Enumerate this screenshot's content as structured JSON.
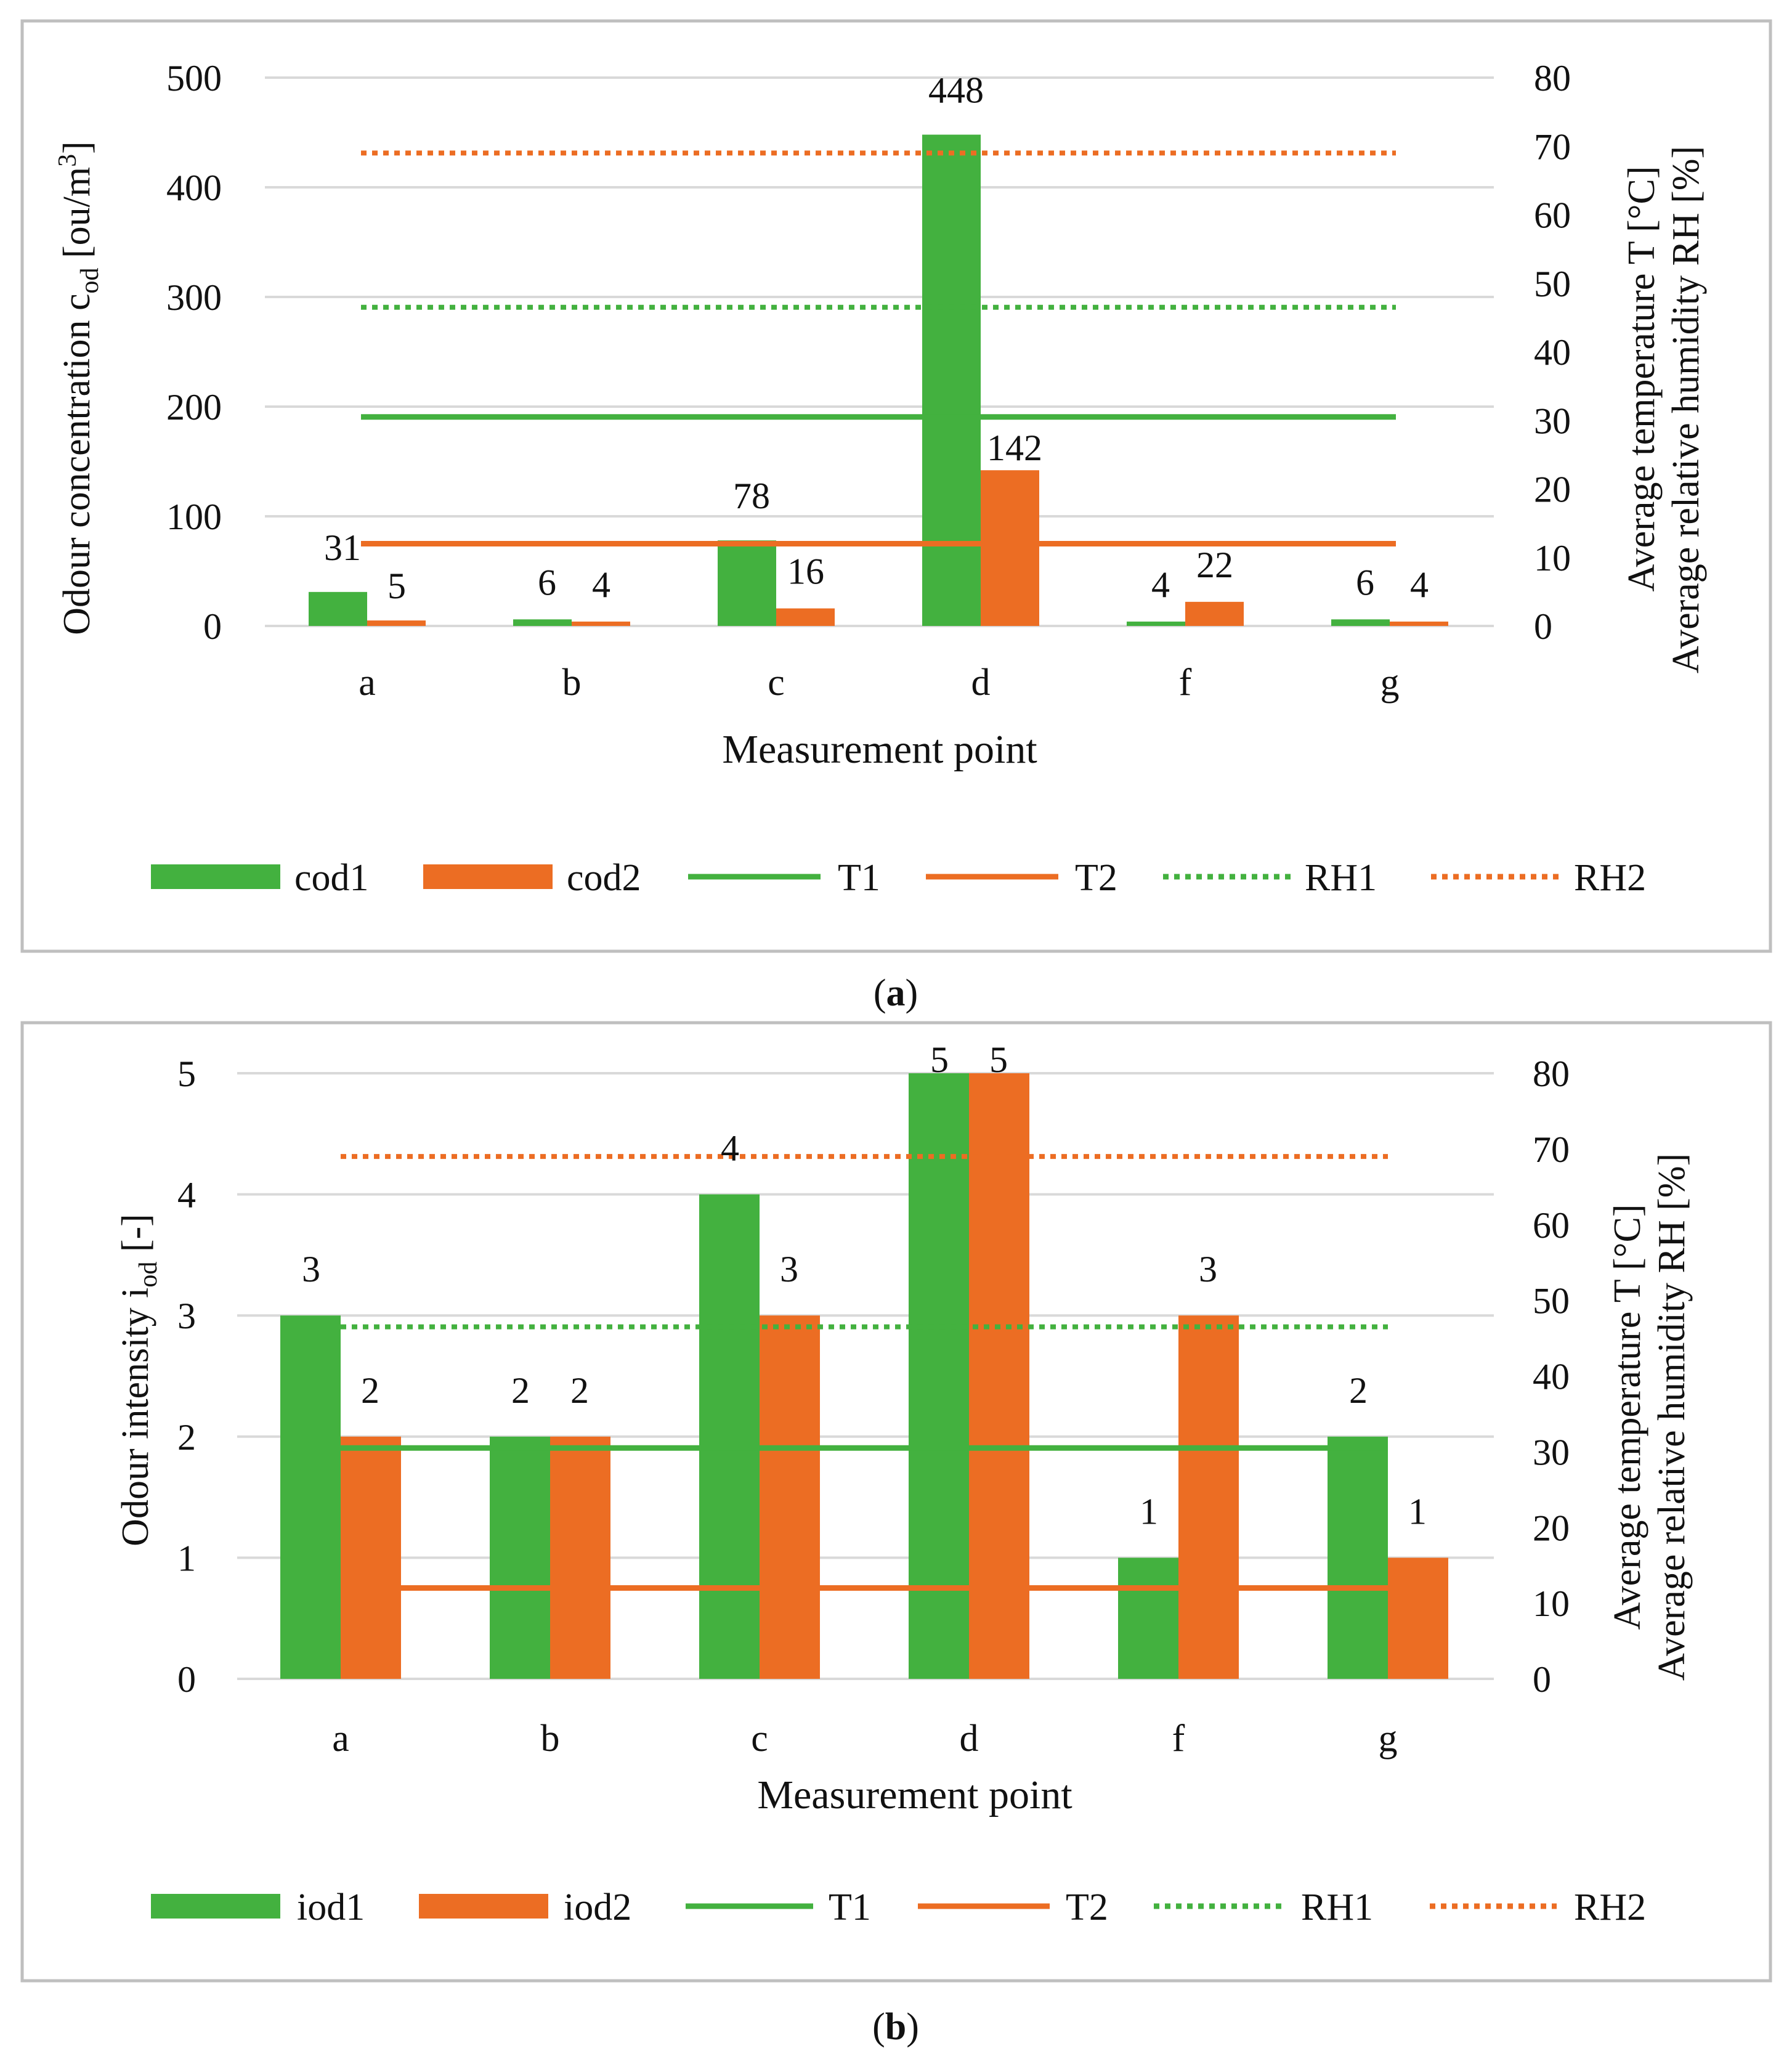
{
  "colors": {
    "green": "#43B13F",
    "orange": "#EC6D23",
    "grid": "#D9D9D9",
    "frame": "#BFBFBF"
  },
  "chart_data": [
    {
      "type": "bar",
      "panel_label": "a",
      "categories": [
        "a",
        "b",
        "c",
        "d",
        "f",
        "g"
      ],
      "xlabel": "Measurement point",
      "ylabel": "Odour concentration c",
      "ylabel_sub": "od",
      "ylabel_unit_open": " [ou/m",
      "ylabel_unit_sup": "3",
      "ylabel_unit_close": "]",
      "ylim": [
        0,
        500
      ],
      "yticks": [
        0,
        100,
        200,
        300,
        400,
        500
      ],
      "y2label_line1": "Average temperature T [°C]",
      "y2label_line2": "Average relative humidity RH [%]",
      "y2lim": [
        0,
        80
      ],
      "y2ticks": [
        0,
        10,
        20,
        30,
        40,
        50,
        60,
        70,
        80
      ],
      "series": [
        {
          "name": "cod1",
          "kind": "bar",
          "color": "green",
          "values": [
            31,
            6,
            78,
            448,
            4,
            6
          ]
        },
        {
          "name": "cod2",
          "kind": "bar",
          "color": "orange",
          "values": [
            5,
            4,
            16,
            142,
            22,
            4
          ]
        },
        {
          "name": "T1",
          "kind": "line",
          "axis": "y2",
          "style": "solid",
          "color": "green",
          "value": 30.5
        },
        {
          "name": "T2",
          "kind": "line",
          "axis": "y2",
          "style": "solid",
          "color": "orange",
          "value": 12
        },
        {
          "name": "RH1",
          "kind": "line",
          "axis": "y2",
          "style": "dotted",
          "color": "green",
          "value": 46.5
        },
        {
          "name": "RH2",
          "kind": "line",
          "axis": "y2",
          "style": "dotted",
          "color": "orange",
          "value": 69
        }
      ]
    },
    {
      "type": "bar",
      "panel_label": "b",
      "categories": [
        "a",
        "b",
        "c",
        "d",
        "f",
        "g"
      ],
      "xlabel": "Measurement point",
      "ylabel": "Odour intensity i",
      "ylabel_sub": "od",
      "ylabel_unit_open": " [-]",
      "ylabel_unit_sup": "",
      "ylabel_unit_close": "",
      "ylim": [
        0,
        5
      ],
      "yticks": [
        0,
        1,
        2,
        3,
        4,
        5
      ],
      "y2label_line1": "Average temperature T [°C]",
      "y2label_line2": "Average relative humidity RH [%]",
      "y2lim": [
        0,
        80
      ],
      "y2ticks": [
        0,
        10,
        20,
        30,
        40,
        50,
        60,
        70,
        80
      ],
      "series": [
        {
          "name": "iod1",
          "kind": "bar",
          "color": "green",
          "values": [
            3,
            2,
            4,
            5,
            1,
            2
          ]
        },
        {
          "name": "iod2",
          "kind": "bar",
          "color": "orange",
          "values": [
            2,
            2,
            3,
            5,
            3,
            1
          ]
        },
        {
          "name": "T1",
          "kind": "line",
          "axis": "y2",
          "style": "solid",
          "color": "green",
          "value": 30.5
        },
        {
          "name": "T2",
          "kind": "line",
          "axis": "y2",
          "style": "solid",
          "color": "orange",
          "value": 12
        },
        {
          "name": "RH1",
          "kind": "line",
          "axis": "y2",
          "style": "dotted",
          "color": "green",
          "value": 46.5
        },
        {
          "name": "RH2",
          "kind": "line",
          "axis": "y2",
          "style": "dotted",
          "color": "orange",
          "value": 69
        }
      ]
    }
  ]
}
